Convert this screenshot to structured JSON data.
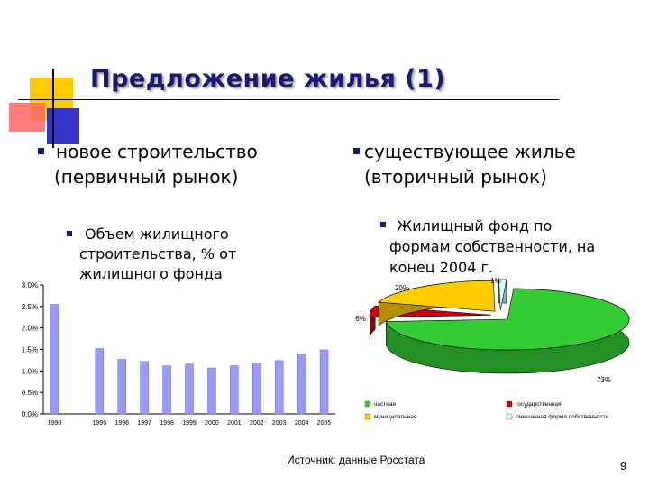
{
  "slide": {
    "title": "Предложение жилья (1)",
    "left_heading_line1": "новое строительство",
    "left_heading_line2": "(первичный рынок)",
    "right_heading_line1": "существующее жилье",
    "right_heading_line2": "(вторичный рынок)",
    "left_sub_line1": "Объем жилищного",
    "left_sub_line2": "строительства, % от",
    "left_sub_line3": "жилищного фонда",
    "right_sub_line1": "Жилищный фонд по",
    "right_sub_line2": "формам собственности, на",
    "right_sub_line3": "конец 2004 г.",
    "source": "Источник: данные Росстата",
    "page_number": "9",
    "accent_colors": {
      "title": "#1a1a6e",
      "deco_yellow": "#ffcc00",
      "deco_red": "#ff6666",
      "deco_blue": "#3333cc"
    }
  },
  "chart_data": [
    {
      "type": "bar",
      "title": "",
      "xlabel": "",
      "ylabel": "",
      "categories": [
        "1990",
        "",
        "1995",
        "1996",
        "1997",
        "1998",
        "1999",
        "2000",
        "2001",
        "2002",
        "2003",
        "2004",
        "2005"
      ],
      "values": [
        2.55,
        null,
        1.52,
        1.27,
        1.22,
        1.12,
        1.16,
        1.07,
        1.12,
        1.18,
        1.24,
        1.4,
        1.49
      ],
      "ylim": [
        0,
        3.0
      ],
      "yticks": [
        "0.0%",
        "0.5%",
        "1.0%",
        "1.5%",
        "2.0%",
        "2.5%",
        "3.0%"
      ],
      "grid": false,
      "bar_color": "#9999ff"
    },
    {
      "type": "pie",
      "title": "",
      "slices": [
        {
          "name": "частная",
          "value": 73,
          "label": "73%",
          "color": "#33cc33"
        },
        {
          "name": "государственная",
          "value": 6,
          "label": "6%",
          "color": "#cc0000"
        },
        {
          "name": "муниципальная",
          "value": 20,
          "label": "20%",
          "color": "#ffcc00"
        },
        {
          "name": "смешанная форма собственности",
          "value": 1,
          "label": "1%",
          "color": "#ccffff"
        }
      ],
      "legend_position": "bottom"
    }
  ]
}
